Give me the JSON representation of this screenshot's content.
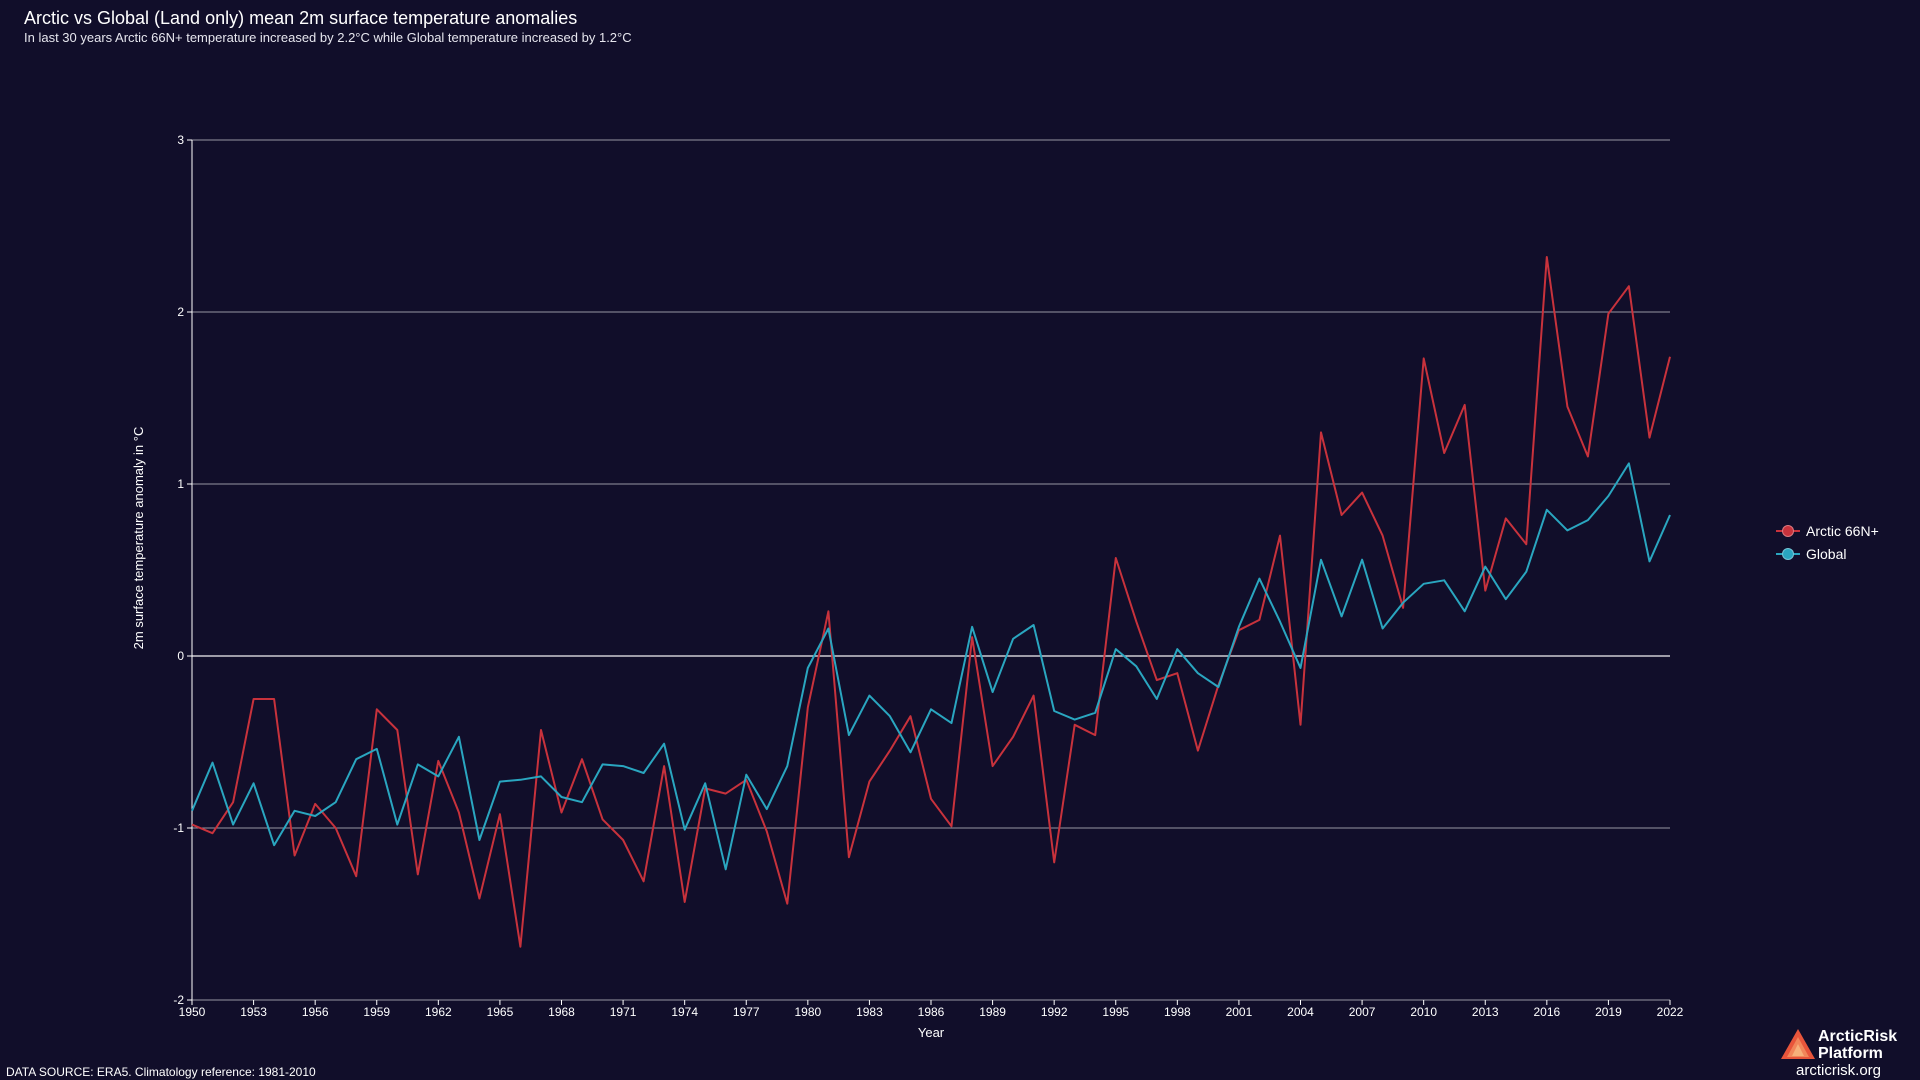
{
  "header": {
    "title": "Arctic vs Global (Land only) mean 2m surface temperature anomalies",
    "subtitle": "In last 30 years Arctic 66N+ temperature increased by 2.2°C while Global temperature increased by 1.2°C"
  },
  "footer": {
    "source": "DATA SOURCE: ERA5. Climatology reference: 1981-2010"
  },
  "brand": {
    "name_line1": "ArcticRisk",
    "name_line2": "Platform",
    "url": "arcticrisk.org",
    "logo_icon": "mountain-triangle-icon"
  },
  "colors": {
    "background": "#110e2a",
    "arctic": "#c8323c",
    "global": "#2aa6c0",
    "grid": "#ffffff",
    "logo": "#e8553b"
  },
  "chart_data": {
    "type": "line",
    "title": "Arctic vs Global (Land only) mean 2m surface temperature anomalies",
    "xlabel": "Year",
    "ylabel": "2m surface temperature anomaly in °C",
    "ylim": [
      -2,
      3
    ],
    "yticks": [
      -2,
      -1,
      0,
      1,
      2,
      3
    ],
    "xlim": [
      1950,
      2022
    ],
    "xticks": [
      1950,
      1953,
      1956,
      1959,
      1962,
      1965,
      1968,
      1971,
      1974,
      1977,
      1980,
      1983,
      1986,
      1989,
      1992,
      1995,
      1998,
      2001,
      2004,
      2007,
      2010,
      2013,
      2016,
      2019,
      2022
    ],
    "grid": "horizontal",
    "legend_position": "right",
    "x": [
      1950,
      1951,
      1952,
      1953,
      1954,
      1955,
      1956,
      1957,
      1958,
      1959,
      1960,
      1961,
      1962,
      1963,
      1964,
      1965,
      1966,
      1967,
      1968,
      1969,
      1970,
      1971,
      1972,
      1973,
      1974,
      1975,
      1976,
      1977,
      1978,
      1979,
      1980,
      1981,
      1982,
      1983,
      1984,
      1985,
      1986,
      1987,
      1988,
      1989,
      1990,
      1991,
      1992,
      1993,
      1994,
      1995,
      1996,
      1997,
      1998,
      1999,
      2000,
      2001,
      2002,
      2003,
      2004,
      2005,
      2006,
      2007,
      2008,
      2009,
      2010,
      2011,
      2012,
      2013,
      2014,
      2015,
      2016,
      2017,
      2018,
      2019,
      2020,
      2021,
      2022
    ],
    "series": [
      {
        "name": "Arctic 66N+",
        "values": [
          -0.98,
          -1.03,
          -0.85,
          -0.25,
          -0.25,
          -1.16,
          -0.86,
          -1.0,
          -1.28,
          -0.31,
          -0.43,
          -1.27,
          -0.61,
          -0.91,
          -1.41,
          -0.92,
          -1.69,
          -0.43,
          -0.91,
          -0.6,
          -0.95,
          -1.07,
          -1.31,
          -0.64,
          -1.43,
          -0.77,
          -0.8,
          -0.72,
          -1.02,
          -1.44,
          -0.3,
          0.26,
          -1.17,
          -0.73,
          -0.55,
          -0.35,
          -0.83,
          -0.99,
          0.11,
          -0.64,
          -0.47,
          -0.23,
          -1.2,
          -0.4,
          -0.46,
          0.57,
          0.2,
          -0.14,
          -0.1,
          -0.55,
          -0.17,
          0.15,
          0.21,
          0.7,
          -0.4,
          1.3,
          0.82,
          0.95,
          0.7,
          0.28,
          1.73,
          1.18,
          1.46,
          0.38,
          0.8,
          0.65,
          2.32,
          1.45,
          1.16,
          1.99,
          2.15,
          1.27,
          1.74
        ]
      },
      {
        "name": "Global",
        "values": [
          -0.9,
          -0.62,
          -0.98,
          -0.74,
          -1.1,
          -0.9,
          -0.93,
          -0.85,
          -0.6,
          -0.54,
          -0.98,
          -0.63,
          -0.7,
          -0.47,
          -1.07,
          -0.73,
          -0.72,
          -0.7,
          -0.82,
          -0.85,
          -0.63,
          -0.64,
          -0.68,
          -0.51,
          -1.01,
          -0.74,
          -1.24,
          -0.69,
          -0.89,
          -0.64,
          -0.07,
          0.16,
          -0.46,
          -0.23,
          -0.35,
          -0.56,
          -0.31,
          -0.39,
          0.17,
          -0.21,
          0.1,
          0.18,
          -0.32,
          -0.37,
          -0.33,
          0.04,
          -0.06,
          -0.25,
          0.04,
          -0.1,
          -0.18,
          0.17,
          0.45,
          0.2,
          -0.07,
          0.56,
          0.23,
          0.56,
          0.16,
          0.31,
          0.42,
          0.44,
          0.26,
          0.52,
          0.33,
          0.49,
          0.85,
          0.73,
          0.79,
          0.93,
          1.12,
          0.55,
          0.82
        ]
      }
    ]
  }
}
